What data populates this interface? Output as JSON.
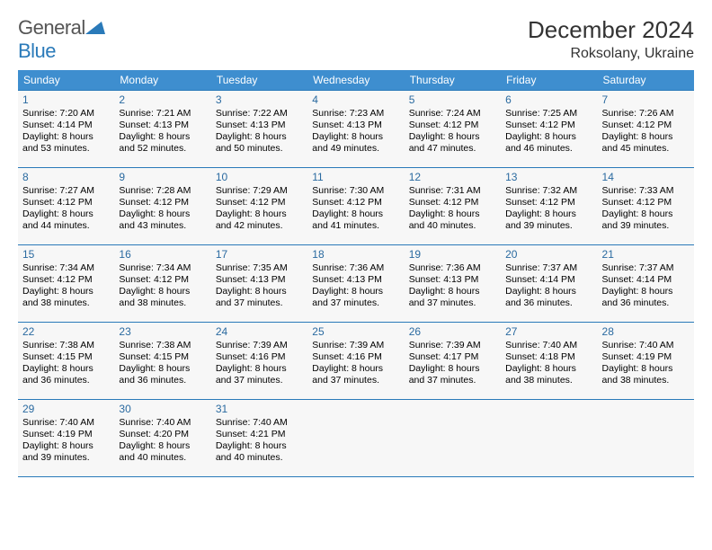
{
  "brand": {
    "part1": "General",
    "part2": "Blue"
  },
  "title": "December 2024",
  "location": "Roksolany, Ukraine",
  "colors": {
    "header_bg": "#3e8ecf",
    "header_text": "#ffffff",
    "rule": "#2a7ab9",
    "daynum": "#2a6aa0",
    "cell_bg": "#f7f7f7",
    "text": "#000000",
    "page_bg": "#ffffff"
  },
  "fonts": {
    "title_size": 26,
    "location_size": 16,
    "dayhead_size": 12,
    "body_size": 10.5
  },
  "dayNames": [
    "Sunday",
    "Monday",
    "Tuesday",
    "Wednesday",
    "Thursday",
    "Friday",
    "Saturday"
  ],
  "weeks": [
    [
      {
        "n": "1",
        "sr": "Sunrise: 7:20 AM",
        "ss": "Sunset: 4:14 PM",
        "d1": "Daylight: 8 hours",
        "d2": "and 53 minutes."
      },
      {
        "n": "2",
        "sr": "Sunrise: 7:21 AM",
        "ss": "Sunset: 4:13 PM",
        "d1": "Daylight: 8 hours",
        "d2": "and 52 minutes."
      },
      {
        "n": "3",
        "sr": "Sunrise: 7:22 AM",
        "ss": "Sunset: 4:13 PM",
        "d1": "Daylight: 8 hours",
        "d2": "and 50 minutes."
      },
      {
        "n": "4",
        "sr": "Sunrise: 7:23 AM",
        "ss": "Sunset: 4:13 PM",
        "d1": "Daylight: 8 hours",
        "d2": "and 49 minutes."
      },
      {
        "n": "5",
        "sr": "Sunrise: 7:24 AM",
        "ss": "Sunset: 4:12 PM",
        "d1": "Daylight: 8 hours",
        "d2": "and 47 minutes."
      },
      {
        "n": "6",
        "sr": "Sunrise: 7:25 AM",
        "ss": "Sunset: 4:12 PM",
        "d1": "Daylight: 8 hours",
        "d2": "and 46 minutes."
      },
      {
        "n": "7",
        "sr": "Sunrise: 7:26 AM",
        "ss": "Sunset: 4:12 PM",
        "d1": "Daylight: 8 hours",
        "d2": "and 45 minutes."
      }
    ],
    [
      {
        "n": "8",
        "sr": "Sunrise: 7:27 AM",
        "ss": "Sunset: 4:12 PM",
        "d1": "Daylight: 8 hours",
        "d2": "and 44 minutes."
      },
      {
        "n": "9",
        "sr": "Sunrise: 7:28 AM",
        "ss": "Sunset: 4:12 PM",
        "d1": "Daylight: 8 hours",
        "d2": "and 43 minutes."
      },
      {
        "n": "10",
        "sr": "Sunrise: 7:29 AM",
        "ss": "Sunset: 4:12 PM",
        "d1": "Daylight: 8 hours",
        "d2": "and 42 minutes."
      },
      {
        "n": "11",
        "sr": "Sunrise: 7:30 AM",
        "ss": "Sunset: 4:12 PM",
        "d1": "Daylight: 8 hours",
        "d2": "and 41 minutes."
      },
      {
        "n": "12",
        "sr": "Sunrise: 7:31 AM",
        "ss": "Sunset: 4:12 PM",
        "d1": "Daylight: 8 hours",
        "d2": "and 40 minutes."
      },
      {
        "n": "13",
        "sr": "Sunrise: 7:32 AM",
        "ss": "Sunset: 4:12 PM",
        "d1": "Daylight: 8 hours",
        "d2": "and 39 minutes."
      },
      {
        "n": "14",
        "sr": "Sunrise: 7:33 AM",
        "ss": "Sunset: 4:12 PM",
        "d1": "Daylight: 8 hours",
        "d2": "and 39 minutes."
      }
    ],
    [
      {
        "n": "15",
        "sr": "Sunrise: 7:34 AM",
        "ss": "Sunset: 4:12 PM",
        "d1": "Daylight: 8 hours",
        "d2": "and 38 minutes."
      },
      {
        "n": "16",
        "sr": "Sunrise: 7:34 AM",
        "ss": "Sunset: 4:12 PM",
        "d1": "Daylight: 8 hours",
        "d2": "and 38 minutes."
      },
      {
        "n": "17",
        "sr": "Sunrise: 7:35 AM",
        "ss": "Sunset: 4:13 PM",
        "d1": "Daylight: 8 hours",
        "d2": "and 37 minutes."
      },
      {
        "n": "18",
        "sr": "Sunrise: 7:36 AM",
        "ss": "Sunset: 4:13 PM",
        "d1": "Daylight: 8 hours",
        "d2": "and 37 minutes."
      },
      {
        "n": "19",
        "sr": "Sunrise: 7:36 AM",
        "ss": "Sunset: 4:13 PM",
        "d1": "Daylight: 8 hours",
        "d2": "and 37 minutes."
      },
      {
        "n": "20",
        "sr": "Sunrise: 7:37 AM",
        "ss": "Sunset: 4:14 PM",
        "d1": "Daylight: 8 hours",
        "d2": "and 36 minutes."
      },
      {
        "n": "21",
        "sr": "Sunrise: 7:37 AM",
        "ss": "Sunset: 4:14 PM",
        "d1": "Daylight: 8 hours",
        "d2": "and 36 minutes."
      }
    ],
    [
      {
        "n": "22",
        "sr": "Sunrise: 7:38 AM",
        "ss": "Sunset: 4:15 PM",
        "d1": "Daylight: 8 hours",
        "d2": "and 36 minutes."
      },
      {
        "n": "23",
        "sr": "Sunrise: 7:38 AM",
        "ss": "Sunset: 4:15 PM",
        "d1": "Daylight: 8 hours",
        "d2": "and 36 minutes."
      },
      {
        "n": "24",
        "sr": "Sunrise: 7:39 AM",
        "ss": "Sunset: 4:16 PM",
        "d1": "Daylight: 8 hours",
        "d2": "and 37 minutes."
      },
      {
        "n": "25",
        "sr": "Sunrise: 7:39 AM",
        "ss": "Sunset: 4:16 PM",
        "d1": "Daylight: 8 hours",
        "d2": "and 37 minutes."
      },
      {
        "n": "26",
        "sr": "Sunrise: 7:39 AM",
        "ss": "Sunset: 4:17 PM",
        "d1": "Daylight: 8 hours",
        "d2": "and 37 minutes."
      },
      {
        "n": "27",
        "sr": "Sunrise: 7:40 AM",
        "ss": "Sunset: 4:18 PM",
        "d1": "Daylight: 8 hours",
        "d2": "and 38 minutes."
      },
      {
        "n": "28",
        "sr": "Sunrise: 7:40 AM",
        "ss": "Sunset: 4:19 PM",
        "d1": "Daylight: 8 hours",
        "d2": "and 38 minutes."
      }
    ],
    [
      {
        "n": "29",
        "sr": "Sunrise: 7:40 AM",
        "ss": "Sunset: 4:19 PM",
        "d1": "Daylight: 8 hours",
        "d2": "and 39 minutes."
      },
      {
        "n": "30",
        "sr": "Sunrise: 7:40 AM",
        "ss": "Sunset: 4:20 PM",
        "d1": "Daylight: 8 hours",
        "d2": "and 40 minutes."
      },
      {
        "n": "31",
        "sr": "Sunrise: 7:40 AM",
        "ss": "Sunset: 4:21 PM",
        "d1": "Daylight: 8 hours",
        "d2": "and 40 minutes."
      },
      null,
      null,
      null,
      null
    ]
  ]
}
